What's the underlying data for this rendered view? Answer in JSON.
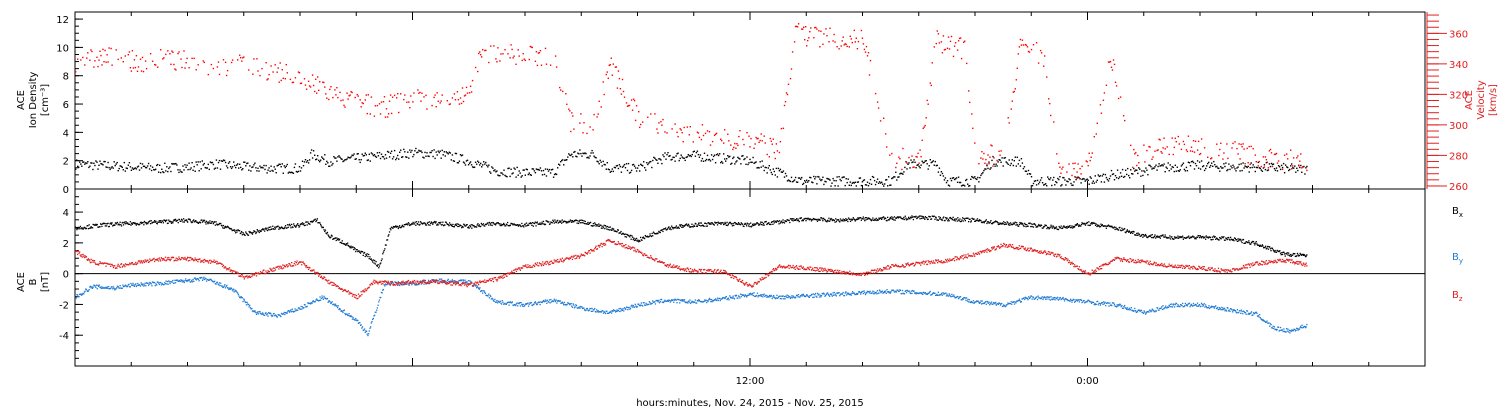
{
  "chart_data": [
    {
      "type": "scatter",
      "panel": "top",
      "ylabel_left": [
        "ACE",
        "Ion Density",
        "[cm⁻³]"
      ],
      "ylabel_right": [
        "ACE",
        "Velocity",
        "[km/s]"
      ],
      "y_left_ticks": [
        "0",
        "2",
        "4",
        "6",
        "8",
        "10",
        "12"
      ],
      "y_left_range": [
        0,
        12.5
      ],
      "y_right_ticks": [
        "260",
        "280",
        "300",
        "320",
        "340",
        "360"
      ],
      "y_right_range": [
        258,
        374
      ],
      "x_hours_range": [
        6.0,
        30.0
      ],
      "series": [
        {
          "axis": "left",
          "color": "#000000",
          "points": [
            [
              6.0,
              1.8
            ],
            [
              6.5,
              1.7
            ],
            [
              7.0,
              1.6
            ],
            [
              7.5,
              1.5
            ],
            [
              8.0,
              1.6
            ],
            [
              8.5,
              1.8
            ],
            [
              9.0,
              1.6
            ],
            [
              9.5,
              1.5
            ],
            [
              10.0,
              1.5
            ],
            [
              10.2,
              2.5
            ],
            [
              10.5,
              2.0
            ],
            [
              11.0,
              2.2
            ],
            [
              11.5,
              2.4
            ],
            [
              12.0,
              2.6
            ],
            [
              12.5,
              2.5
            ],
            [
              13.0,
              2.0
            ],
            [
              13.5,
              1.3
            ],
            [
              14.0,
              1.2
            ],
            [
              14.5,
              1.2
            ],
            [
              14.8,
              2.5
            ],
            [
              15.2,
              2.5
            ],
            [
              15.5,
              1.5
            ],
            [
              16.0,
              1.5
            ],
            [
              16.5,
              2.3
            ],
            [
              17.0,
              2.4
            ],
            [
              17.5,
              2.2
            ],
            [
              18.0,
              2.0
            ],
            [
              18.5,
              1.2
            ],
            [
              18.9,
              0.6
            ],
            [
              19.5,
              0.6
            ],
            [
              20.0,
              0.6
            ],
            [
              20.5,
              0.6
            ],
            [
              20.8,
              1.8
            ],
            [
              21.3,
              1.8
            ],
            [
              21.5,
              0.6
            ],
            [
              22.0,
              0.6
            ],
            [
              22.3,
              2.0
            ],
            [
              22.8,
              2.0
            ],
            [
              23.0,
              0.6
            ],
            [
              23.5,
              0.6
            ],
            [
              24.0,
              0.6
            ],
            [
              24.4,
              1.0
            ],
            [
              24.8,
              1.2
            ],
            [
              25.2,
              1.5
            ],
            [
              25.5,
              1.6
            ],
            [
              26.0,
              1.7
            ],
            [
              26.5,
              1.6
            ],
            [
              27.0,
              1.6
            ],
            [
              27.5,
              1.5
            ],
            [
              27.9,
              1.4
            ]
          ]
        },
        {
          "axis": "right",
          "color": "#ff0000",
          "points": [
            [
              6.0,
              342
            ],
            [
              6.5,
              345
            ],
            [
              7.0,
              342
            ],
            [
              7.5,
              343
            ],
            [
              8.0,
              342
            ],
            [
              8.5,
              338
            ],
            [
              9.0,
              340
            ],
            [
              9.5,
              336
            ],
            [
              10.0,
              330
            ],
            [
              10.5,
              322
            ],
            [
              11.0,
              315
            ],
            [
              11.5,
              312
            ],
            [
              12.0,
              318
            ],
            [
              12.5,
              316
            ],
            [
              13.0,
              320
            ],
            [
              13.2,
              346
            ],
            [
              13.7,
              347
            ],
            [
              14.0,
              345
            ],
            [
              14.5,
              346
            ],
            [
              14.8,
              302
            ],
            [
              15.2,
              300
            ],
            [
              15.5,
              340
            ],
            [
              16.0,
              305
            ],
            [
              16.5,
              298
            ],
            [
              17.0,
              295
            ],
            [
              17.5,
              292
            ],
            [
              18.0,
              290
            ],
            [
              18.5,
              284
            ],
            [
              18.8,
              360
            ],
            [
              19.3,
              358
            ],
            [
              19.7,
              357
            ],
            [
              20.0,
              356
            ],
            [
              20.5,
              278
            ],
            [
              21.0,
              278
            ],
            [
              21.3,
              356
            ],
            [
              21.8,
              350
            ],
            [
              22.0,
              281
            ],
            [
              22.5,
              280
            ],
            [
              22.8,
              355
            ],
            [
              23.2,
              345
            ],
            [
              23.5,
              273
            ],
            [
              24.0,
              272
            ],
            [
              24.4,
              345
            ],
            [
              24.8,
              278
            ],
            [
              25.2,
              285
            ],
            [
              25.5,
              287
            ],
            [
              26.0,
              286
            ],
            [
              26.5,
              284
            ],
            [
              27.0,
              280
            ],
            [
              27.5,
              278
            ],
            [
              27.9,
              277
            ]
          ]
        }
      ]
    },
    {
      "type": "scatter",
      "panel": "bottom",
      "ylabel_left": [
        "ACE",
        "B",
        "[nT]"
      ],
      "y_ticks": [
        "-4",
        "-2",
        "0",
        "2",
        "4"
      ],
      "y_range": [
        -6.0,
        5.5
      ],
      "x_hours_range": [
        6.0,
        30.0
      ],
      "x_ticks": [
        {
          "h": 18,
          "label": "12:00"
        },
        {
          "h": 24,
          "label": "0:00"
        }
      ],
      "xlabel": "hours:minutes, Nov. 24, 2015 - Nov. 25, 2015",
      "series": [
        {
          "name": "Bx",
          "color": "#000000",
          "points": [
            [
              6.0,
              3.0
            ],
            [
              6.5,
              3.2
            ],
            [
              7.0,
              3.3
            ],
            [
              7.5,
              3.4
            ],
            [
              8.0,
              3.5
            ],
            [
              8.5,
              3.3
            ],
            [
              9.0,
              2.6
            ],
            [
              9.5,
              3.0
            ],
            [
              10.0,
              3.2
            ],
            [
              10.3,
              3.5
            ],
            [
              10.5,
              2.5
            ],
            [
              10.8,
              2.0
            ],
            [
              11.0,
              1.5
            ],
            [
              11.2,
              1.2
            ],
            [
              11.4,
              0.5
            ],
            [
              11.6,
              3.0
            ],
            [
              12.0,
              3.3
            ],
            [
              12.5,
              3.3
            ],
            [
              13.0,
              3.1
            ],
            [
              13.5,
              3.3
            ],
            [
              14.0,
              3.2
            ],
            [
              14.5,
              3.4
            ],
            [
              15.0,
              3.4
            ],
            [
              15.5,
              3.0
            ],
            [
              16.0,
              2.2
            ],
            [
              16.5,
              3.0
            ],
            [
              17.0,
              3.2
            ],
            [
              17.5,
              3.3
            ],
            [
              18.0,
              3.2
            ],
            [
              18.5,
              3.4
            ],
            [
              19.0,
              3.6
            ],
            [
              19.5,
              3.5
            ],
            [
              20.0,
              3.6
            ],
            [
              20.5,
              3.6
            ],
            [
              21.0,
              3.7
            ],
            [
              21.5,
              3.6
            ],
            [
              22.0,
              3.5
            ],
            [
              22.5,
              3.3
            ],
            [
              23.0,
              3.2
            ],
            [
              23.5,
              3.0
            ],
            [
              24.0,
              3.3
            ],
            [
              24.5,
              3.0
            ],
            [
              25.0,
              2.5
            ],
            [
              25.5,
              2.4
            ],
            [
              26.0,
              2.4
            ],
            [
              26.5,
              2.3
            ],
            [
              27.0,
              2.0
            ],
            [
              27.5,
              1.3
            ],
            [
              27.9,
              1.2
            ]
          ]
        },
        {
          "name": "By",
          "color": "#1f7bd4",
          "points": [
            [
              6.0,
              -1.5
            ],
            [
              6.3,
              -0.8
            ],
            [
              6.7,
              -0.9
            ],
            [
              7.0,
              -0.7
            ],
            [
              7.5,
              -0.6
            ],
            [
              8.0,
              -0.4
            ],
            [
              8.3,
              -0.3
            ],
            [
              8.8,
              -1.0
            ],
            [
              9.2,
              -2.5
            ],
            [
              9.6,
              -2.7
            ],
            [
              10.0,
              -2.2
            ],
            [
              10.4,
              -1.5
            ],
            [
              10.8,
              -2.5
            ],
            [
              11.0,
              -3.0
            ],
            [
              11.2,
              -3.9
            ],
            [
              11.5,
              -0.6
            ],
            [
              12.0,
              -0.6
            ],
            [
              12.5,
              -0.4
            ],
            [
              13.0,
              -0.5
            ],
            [
              13.5,
              -1.8
            ],
            [
              14.0,
              -2.0
            ],
            [
              14.5,
              -1.7
            ],
            [
              15.0,
              -2.2
            ],
            [
              15.5,
              -2.5
            ],
            [
              16.0,
              -2.0
            ],
            [
              16.5,
              -1.7
            ],
            [
              17.0,
              -1.8
            ],
            [
              17.5,
              -1.6
            ],
            [
              18.0,
              -1.3
            ],
            [
              18.5,
              -1.5
            ],
            [
              19.0,
              -1.4
            ],
            [
              19.5,
              -1.3
            ],
            [
              20.0,
              -1.2
            ],
            [
              20.5,
              -1.1
            ],
            [
              21.0,
              -1.2
            ],
            [
              21.5,
              -1.3
            ],
            [
              22.0,
              -1.8
            ],
            [
              22.5,
              -2.0
            ],
            [
              23.0,
              -1.5
            ],
            [
              23.5,
              -1.6
            ],
            [
              24.0,
              -1.8
            ],
            [
              24.5,
              -2.0
            ],
            [
              25.0,
              -2.5
            ],
            [
              25.5,
              -2.0
            ],
            [
              26.0,
              -2.0
            ],
            [
              26.5,
              -2.3
            ],
            [
              27.0,
              -2.6
            ],
            [
              27.3,
              -3.5
            ],
            [
              27.6,
              -3.7
            ],
            [
              27.9,
              -3.3
            ]
          ]
        },
        {
          "name": "Bz",
          "color": "#e02020",
          "points": [
            [
              6.0,
              1.5
            ],
            [
              6.3,
              0.8
            ],
            [
              6.7,
              0.5
            ],
            [
              7.0,
              0.7
            ],
            [
              7.5,
              1.0
            ],
            [
              8.0,
              1.0
            ],
            [
              8.5,
              0.8
            ],
            [
              9.0,
              -0.2
            ],
            [
              9.5,
              0.3
            ],
            [
              10.0,
              0.8
            ],
            [
              10.5,
              -0.5
            ],
            [
              11.0,
              -1.5
            ],
            [
              11.3,
              -0.5
            ],
            [
              11.7,
              -0.6
            ],
            [
              12.0,
              -0.5
            ],
            [
              12.5,
              -0.5
            ],
            [
              13.0,
              -0.7
            ],
            [
              13.5,
              -0.3
            ],
            [
              14.0,
              0.5
            ],
            [
              14.5,
              0.8
            ],
            [
              15.0,
              1.2
            ],
            [
              15.5,
              2.2
            ],
            [
              16.0,
              1.5
            ],
            [
              16.5,
              0.6
            ],
            [
              17.0,
              0.2
            ],
            [
              17.5,
              0.2
            ],
            [
              18.0,
              -0.8
            ],
            [
              18.5,
              0.5
            ],
            [
              19.0,
              0.4
            ],
            [
              19.5,
              0.2
            ],
            [
              20.0,
              0.0
            ],
            [
              20.5,
              0.5
            ],
            [
              21.0,
              0.7
            ],
            [
              21.5,
              0.9
            ],
            [
              22.0,
              1.3
            ],
            [
              22.5,
              1.9
            ],
            [
              23.0,
              1.6
            ],
            [
              23.5,
              1.2
            ],
            [
              24.0,
              0.0
            ],
            [
              24.5,
              1.0
            ],
            [
              25.0,
              0.8
            ],
            [
              25.5,
              0.5
            ],
            [
              26.0,
              0.4
            ],
            [
              26.5,
              0.2
            ],
            [
              27.0,
              0.7
            ],
            [
              27.5,
              0.9
            ],
            [
              27.9,
              0.6
            ]
          ]
        }
      ],
      "legend": [
        {
          "label": "B",
          "sub": "x",
          "color": "#000000"
        },
        {
          "label": "B",
          "sub": "y",
          "color": "#1f7bd4"
        },
        {
          "label": "B",
          "sub": "z",
          "color": "#e02020"
        }
      ]
    }
  ]
}
